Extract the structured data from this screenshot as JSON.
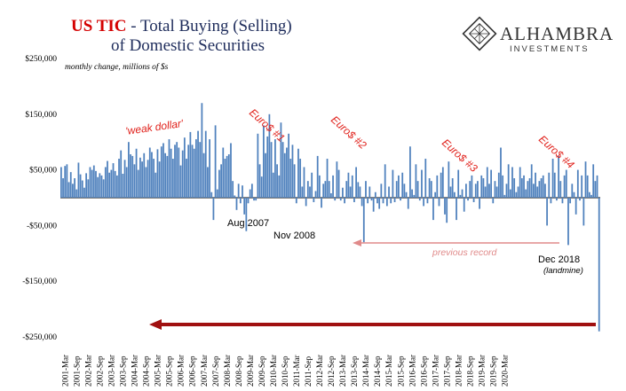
{
  "title": {
    "part1": "US TIC",
    "part2": " - Total Buying (Selling)",
    "line2": "of Domestic Securities"
  },
  "logo": {
    "name": "ALHAMBRA",
    "sub": "INVESTMENTS"
  },
  "unit_note": "monthly change, millions of $s",
  "annotations": {
    "weak_dollar": "'weak dollar'",
    "euro1": "Euro$ #1",
    "euro2": "Euro$ #2",
    "euro3": "Euro$ #3",
    "euro4": "Euro$ #4",
    "aug2007": "Aug 2007",
    "nov2008": "Nov 2008",
    "previous_record": "previous record",
    "dec2018": "Dec 2018",
    "landmine": "(landmine)"
  },
  "colors": {
    "bar": "#4f81bd",
    "title_red": "#d40000",
    "title_dark": "#1f2d5c",
    "annotation_red": "#e0201a",
    "arrow_dark_red": "#a01010",
    "arrow_pink": "#e08a8a"
  },
  "chart_data": {
    "type": "bar",
    "title": "US TIC - Total Buying (Selling) of Domestic Securities",
    "ylabel": "monthly change, millions of $s",
    "ylim": [
      -250000,
      250000
    ],
    "y_ticks": [
      "$250,000",
      "$150,000",
      "$50,000",
      "-$50,000",
      "-$150,000",
      "-$250,000"
    ],
    "y_tick_values": [
      250000,
      150000,
      50000,
      -50000,
      -150000,
      -250000
    ],
    "x_ticks": [
      "2001-Mar",
      "2001-Sep",
      "2002-Mar",
      "2002-Sep",
      "2003-Mar",
      "2003-Sep",
      "2004-Mar",
      "2004-Sep",
      "2005-Mar",
      "2005-Sep",
      "2006-Mar",
      "2006-Sep",
      "2007-Mar",
      "2007-Sep",
      "2008-Mar",
      "2008-Sep",
      "2009-Mar",
      "2009-Sep",
      "2010-Mar",
      "2010-Sep",
      "2011-Mar",
      "2011-Sep",
      "2012-Mar",
      "2012-Sep",
      "2013-Mar",
      "2013-Sep",
      "2014-Mar",
      "2014-Sep",
      "2015-Mar",
      "2015-Sep",
      "2016-Mar",
      "2016-Sep",
      "2017-Mar",
      "2017-Sep",
      "2018-Mar",
      "2018-Sep",
      "2019-Mar",
      "2019-Sep",
      "2020-Mar"
    ],
    "start": "2001-Jan",
    "end": "2020-Mar",
    "series": [
      {
        "values": [
          55000,
          35000,
          57000,
          60000,
          28000,
          46000,
          25000,
          35000,
          15000,
          63000,
          42000,
          31000,
          18000,
          44000,
          33000,
          55000,
          50000,
          58000,
          48000,
          37000,
          44000,
          40000,
          33000,
          55000,
          66000,
          45000,
          50000,
          62000,
          48000,
          40000,
          70000,
          85000,
          43000,
          68000,
          55000,
          100000,
          78000,
          75000,
          60000,
          88000,
          50000,
          72000,
          65000,
          80000,
          55000,
          68000,
          90000,
          82000,
          70000,
          45000,
          87000,
          65000,
          92000,
          98000,
          80000,
          75000,
          105000,
          88000,
          70000,
          95000,
          100000,
          90000,
          58000,
          85000,
          108000,
          70000,
          95000,
          118000,
          95000,
          88000,
          105000,
          120000,
          100000,
          170000,
          80000,
          120000,
          55000,
          105000,
          10000,
          -40000,
          130000,
          15000,
          50000,
          60000,
          90000,
          70000,
          75000,
          78000,
          98000,
          30000,
          4000,
          -22000,
          25000,
          -10000,
          22000,
          -30000,
          -60000,
          -10000,
          15000,
          25000,
          -5000,
          -5000,
          115000,
          60000,
          38000,
          130000,
          80000,
          110000,
          150000,
          100000,
          45000,
          105000,
          60000,
          40000,
          135000,
          100000,
          80000,
          90000,
          115000,
          70000,
          95000,
          60000,
          -10000,
          88000,
          70000,
          20000,
          55000,
          -15000,
          30000,
          20000,
          45000,
          -8000,
          12000,
          75000,
          40000,
          -18000,
          25000,
          30000,
          70000,
          30000,
          8000,
          40000,
          -5000,
          65000,
          50000,
          -5000,
          18000,
          -10000,
          30000,
          45000,
          20000,
          40000,
          -8000,
          55000,
          28000,
          20000,
          -15000,
          -80000,
          30000,
          -10000,
          20000,
          -5000,
          -25000,
          10000,
          -10000,
          -20000,
          25000,
          -10000,
          60000,
          -15000,
          20000,
          -10000,
          50000,
          -8000,
          30000,
          40000,
          -5000,
          45000,
          25000,
          10000,
          -20000,
          92000,
          15000,
          5000,
          60000,
          30000,
          -5000,
          50000,
          -15000,
          70000,
          -10000,
          35000,
          30000,
          -40000,
          10000,
          40000,
          -15000,
          45000,
          55000,
          -30000,
          -45000,
          65000,
          20000,
          35000,
          10000,
          -40000,
          50000,
          5000,
          15000,
          -25000,
          25000,
          -5000,
          30000,
          40000,
          -8000,
          25000,
          30000,
          -20000,
          40000,
          35000,
          20000,
          55000,
          25000,
          50000,
          -10000,
          30000,
          20000,
          45000,
          90000,
          40000,
          5000,
          25000,
          60000,
          15000,
          55000,
          35000,
          10000,
          20000,
          55000,
          35000,
          40000,
          15000,
          30000,
          35000,
          60000,
          25000,
          45000,
          20000,
          30000,
          35000,
          40000,
          25000,
          -50000,
          45000,
          -10000,
          70000,
          45000,
          -5000,
          75000,
          30000,
          -10000,
          40000,
          50000,
          -85000,
          -10000,
          25000,
          10000,
          -30000,
          50000,
          -5000,
          40000,
          -50000,
          65000,
          40000,
          10000,
          5000,
          60000,
          30000,
          40000,
          -240000
        ]
      }
    ]
  }
}
